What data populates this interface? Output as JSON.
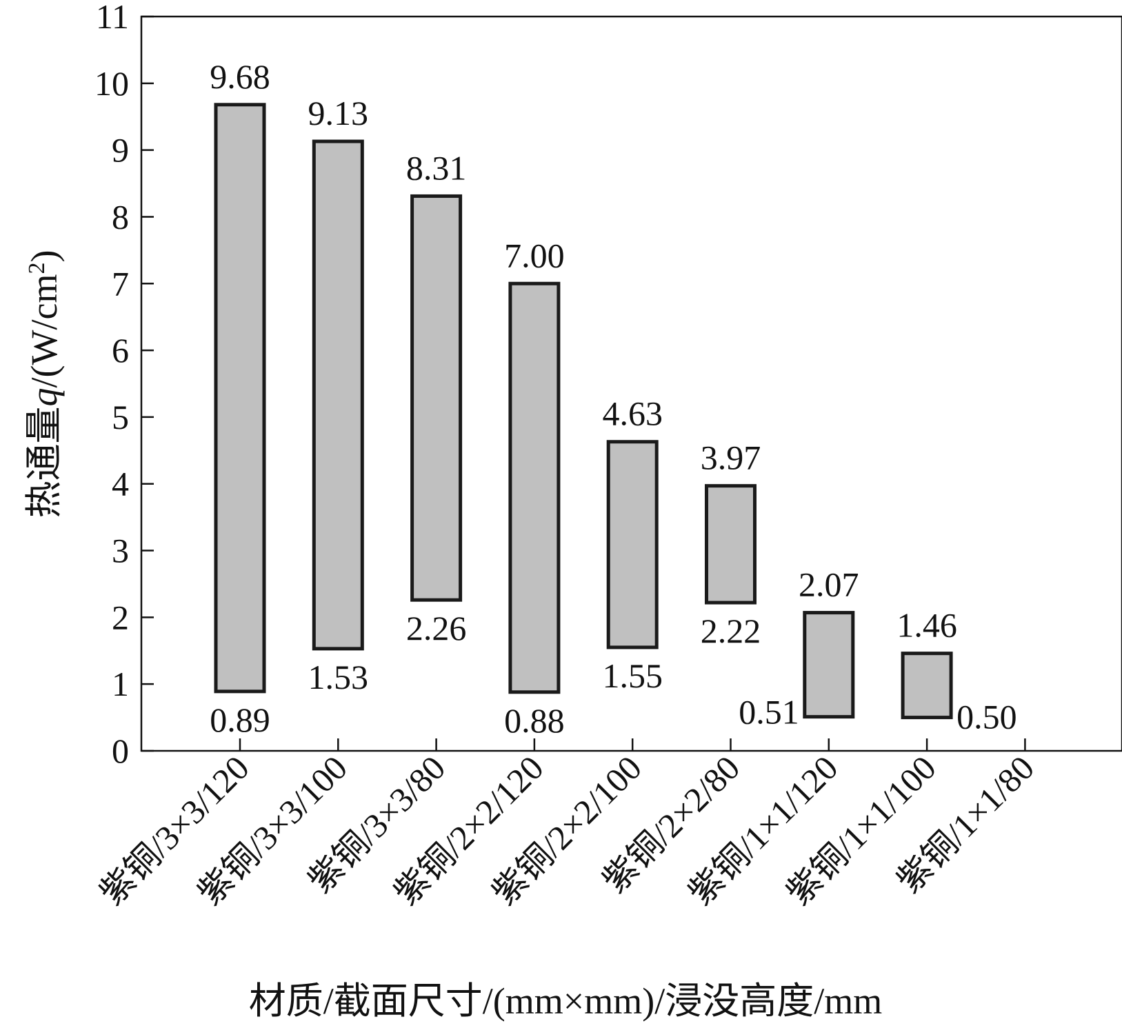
{
  "chart_data": {
    "type": "bar",
    "subtype": "floating-range",
    "xlabel": "材质/截面尺寸/(mm×mm)/浸没高度/mm",
    "ylabel_prefix": "热通量",
    "ylabel_var": "q",
    "ylabel_unit": "/(W/cm",
    "ylabel_sup": "2",
    "ylabel_close": ")",
    "ylim": [
      0,
      11
    ],
    "yticks": [
      "0",
      "1",
      "2",
      "3",
      "4",
      "5",
      "6",
      "7",
      "8",
      "9",
      "10",
      "11"
    ],
    "grid": false,
    "legend": "none",
    "bar_fill": "#c0c0c0",
    "bar_stroke": "#1a1a1a",
    "categories": [
      "紫铜/3×3/120",
      "紫铜/3×3/100",
      "紫铜/3×3/80",
      "紫铜/2×2/120",
      "紫铜/2×2/100",
      "紫铜/2×2/80",
      "紫铜/1×1/120",
      "紫铜/1×1/100",
      "紫铜/1×1/80"
    ],
    "ranges": [
      {
        "low": 0.89,
        "high": 9.68,
        "low_label": "0.89",
        "high_label": "9.68"
      },
      {
        "low": 1.53,
        "high": 9.13,
        "low_label": "1.53",
        "high_label": "9.13"
      },
      {
        "low": 2.26,
        "high": 8.31,
        "low_label": "2.26",
        "high_label": "8.31"
      },
      {
        "low": 0.88,
        "high": 7.0,
        "low_label": "0.88",
        "high_label": "7.00"
      },
      {
        "low": 1.55,
        "high": 4.63,
        "low_label": "1.55",
        "high_label": "4.63"
      },
      {
        "low": 2.22,
        "high": 3.97,
        "low_label": "2.22",
        "high_label": "3.97"
      },
      {
        "low": 0.51,
        "high": 2.07,
        "low_label": "0.51",
        "high_label": "2.07"
      },
      {
        "low": 0.5,
        "high": 1.46,
        "low_label": "0.50",
        "high_label": "1.46"
      },
      {
        "low": null,
        "high": null,
        "low_label": "",
        "high_label": ""
      }
    ]
  }
}
